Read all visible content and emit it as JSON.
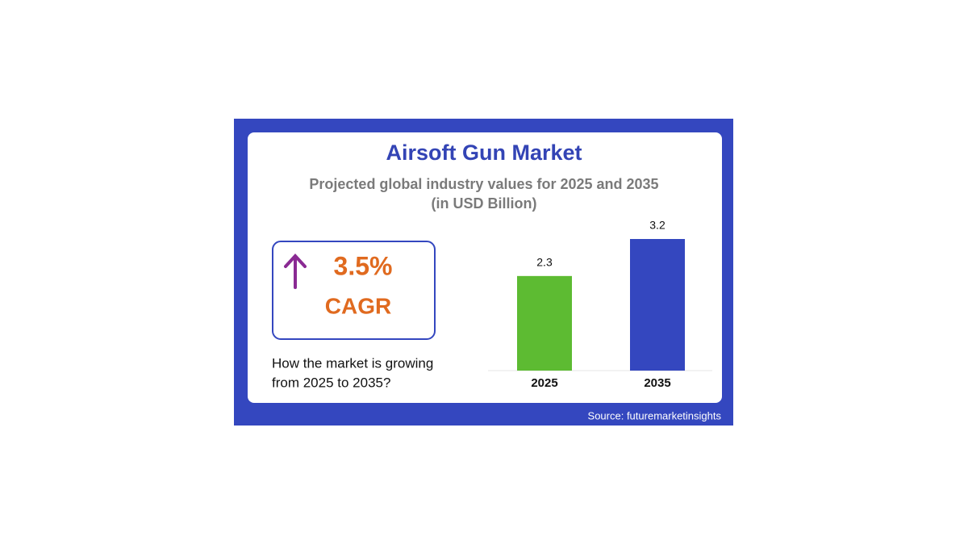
{
  "chart_data": {
    "type": "bar",
    "title": "Airsoft Gun Market",
    "subtitle": "Projected global industry values for 2025 and 2035",
    "unit_note": "(in USD Billion)",
    "cagr": {
      "value": "3.5%",
      "label": "CAGR"
    },
    "question": [
      "How the market is growing",
      "from 2025 to 2035?"
    ],
    "source": "Source: futuremarketinsights",
    "categories": [
      "2025",
      "2035"
    ],
    "values": [
      2.3,
      3.2
    ],
    "colors": [
      "#5dbb32",
      "#3447bf"
    ],
    "ylim": [
      0,
      3.2
    ]
  }
}
